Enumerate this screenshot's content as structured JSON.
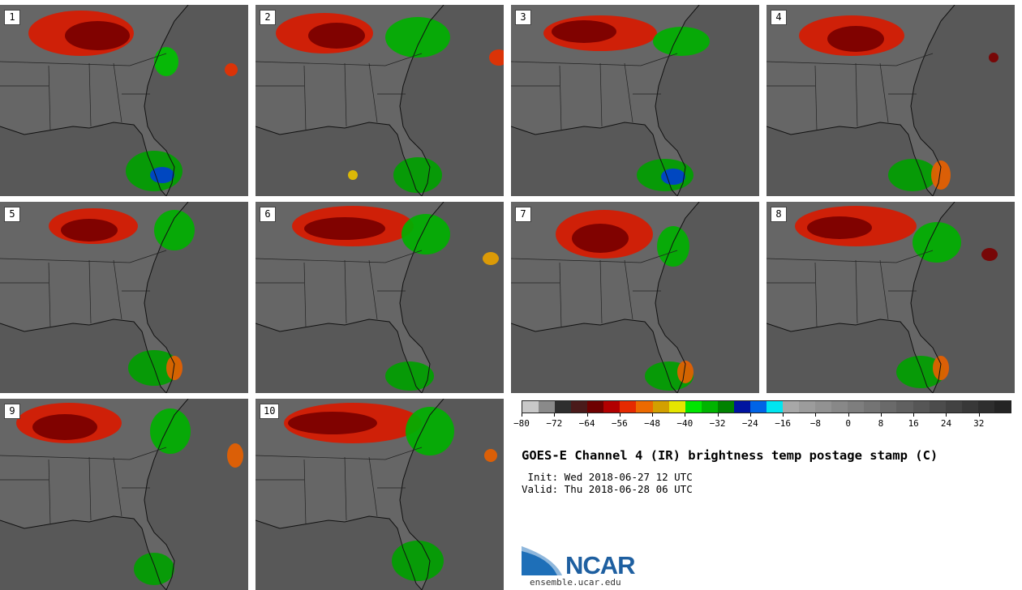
{
  "panels": [
    {
      "label": "1"
    },
    {
      "label": "2"
    },
    {
      "label": "3"
    },
    {
      "label": "4"
    },
    {
      "label": "5"
    },
    {
      "label": "6"
    },
    {
      "label": "7"
    },
    {
      "label": "8"
    },
    {
      "label": "9"
    },
    {
      "label": "10"
    }
  ],
  "colorbar": {
    "colors": [
      "#c8c8c8",
      "#8a8a8a",
      "#2e2e2e",
      "#4a1a1a",
      "#6e0000",
      "#b20000",
      "#e62a00",
      "#ec6a00",
      "#d2a000",
      "#e6e600",
      "#00e600",
      "#00b400",
      "#008200",
      "#0014a0",
      "#0064e6",
      "#00e6f0",
      "#a8a8a8",
      "#9c9c9c",
      "#929292",
      "#888888",
      "#7e7e7e",
      "#747474",
      "#6a6a6a",
      "#606060",
      "#565656",
      "#4c4c4c",
      "#424242",
      "#383838",
      "#2e2e2e",
      "#242424"
    ],
    "tick_labels": [
      "−80",
      "−72",
      "−64",
      "−56",
      "−48",
      "−40",
      "−32",
      "−24",
      "−16",
      "−8",
      "0",
      "8",
      "16",
      "24",
      "32"
    ]
  },
  "title": "GOES-E Channel 4 (IR) brightness temp postage stamp (C)",
  "init": " Init: Wed 2018-06-27 12 UTC",
  "valid": "Valid: Thu 2018-06-28 06 UTC",
  "logo": {
    "text": "NCAR",
    "url": "ensemble.ucar.edu"
  }
}
